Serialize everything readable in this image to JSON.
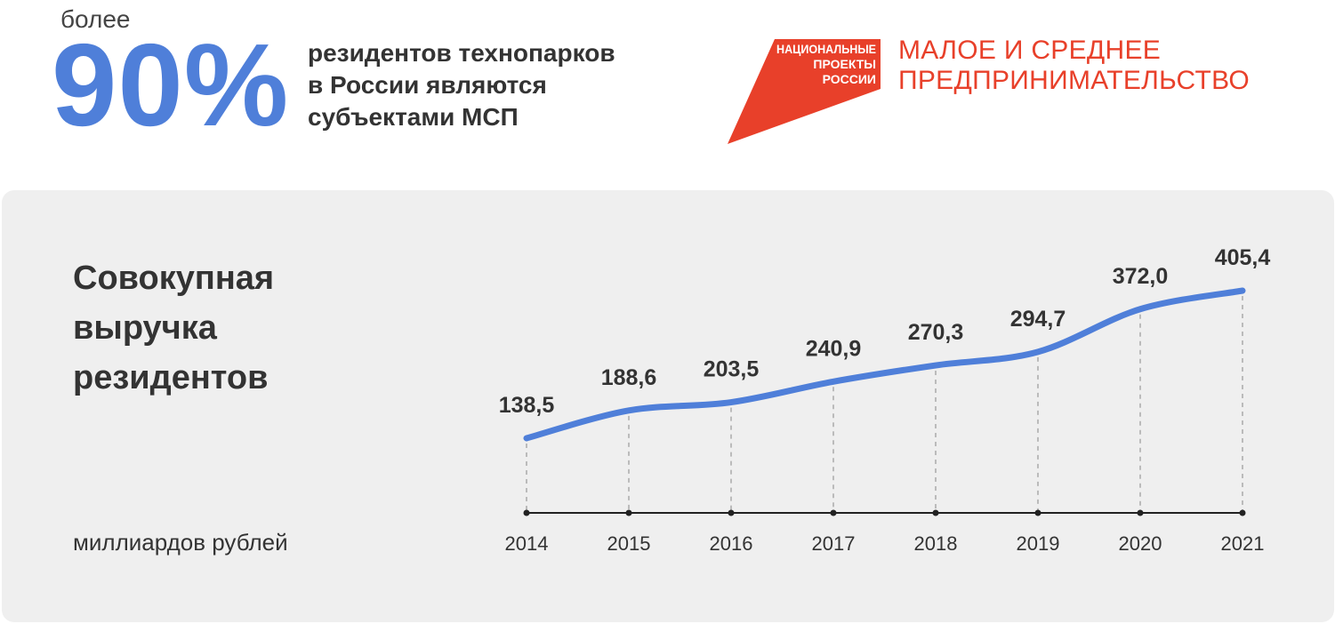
{
  "header": {
    "prefix": "более",
    "big_value": "90%",
    "statement_lines": [
      "резидентов технопарков",
      "в России являются",
      "субъектами МСП"
    ]
  },
  "logo": {
    "wordmark_lines": [
      "НАЦИОНАЛЬНЫЕ",
      "ПРОЕКТЫ",
      "РОССИИ"
    ],
    "title_lines": [
      "МАЛОЕ И СРЕДНЕЕ",
      "ПРЕДПРИНИМАТЕЛЬСТВО"
    ],
    "color": "#E8402A"
  },
  "colors": {
    "accent": "#4F7FD9",
    "panel": "#efefef",
    "text": "#333333"
  },
  "chart_data": {
    "type": "line",
    "title_lines": [
      "Совокупная",
      "выручка",
      "резидентов"
    ],
    "units": "миллиардов рублей",
    "x": [
      "2014",
      "2015",
      "2016",
      "2017",
      "2018",
      "2019",
      "2020",
      "2021"
    ],
    "series": [
      {
        "values": [
          138.5,
          188.6,
          203.5,
          240.9,
          270.3,
          294.7,
          372.0,
          405.4
        ]
      }
    ],
    "value_labels": [
      "138,5",
      "188,6",
      "203,5",
      "240,9",
      "270,3",
      "294,7",
      "372,0",
      "405,4"
    ],
    "grid": false,
    "color": "#4F7FD9"
  }
}
